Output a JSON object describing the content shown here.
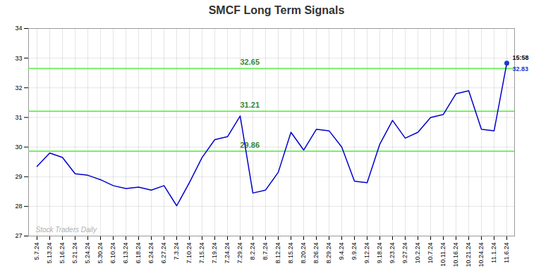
{
  "chart_data": {
    "type": "line",
    "title": "SMCF Long Term Signals",
    "categories": [
      "5.7.24",
      "5.13.24",
      "5.16.24",
      "5.21.24",
      "5.24.24",
      "5.30.24",
      "6.10.24",
      "6.13.24",
      "6.18.24",
      "6.24.24",
      "6.27.24",
      "7.3.24",
      "7.10.24",
      "7.15.24",
      "7.19.24",
      "7.24.24",
      "7.29.24",
      "8.2.24",
      "8.7.24",
      "8.12.24",
      "8.15.24",
      "8.20.24",
      "8.26.24",
      "8.29.24",
      "9.4.24",
      "9.9.24",
      "9.12.24",
      "9.18.24",
      "9.23.24",
      "9.27.24",
      "10.2.24",
      "10.7.24",
      "10.11.24",
      "10.16.24",
      "10.21.24",
      "10.24.24",
      "11.1.24",
      "11.6.24"
    ],
    "values": [
      29.35,
      29.8,
      29.65,
      29.1,
      29.05,
      28.9,
      28.7,
      28.6,
      28.65,
      28.55,
      28.7,
      28.02,
      28.8,
      29.65,
      30.25,
      30.35,
      31.05,
      28.45,
      28.55,
      29.15,
      30.5,
      29.9,
      30.6,
      30.55,
      30.0,
      28.85,
      28.8,
      30.1,
      30.9,
      30.3,
      30.5,
      31.0,
      31.1,
      31.8,
      31.9,
      30.6,
      30.55,
      32.83
    ],
    "color": "#0000cc",
    "ylim": [
      27,
      34
    ],
    "yticks": [
      27,
      28,
      29,
      30,
      31,
      32,
      33,
      34
    ],
    "grid": true,
    "hlines": {
      "values": [
        29.86,
        31.21,
        32.65
      ],
      "color": "#66ee55"
    },
    "last": {
      "time": "15:58",
      "value": 32.83,
      "color": "#1a3acc"
    },
    "watermark": "Stock Traders Daily"
  }
}
